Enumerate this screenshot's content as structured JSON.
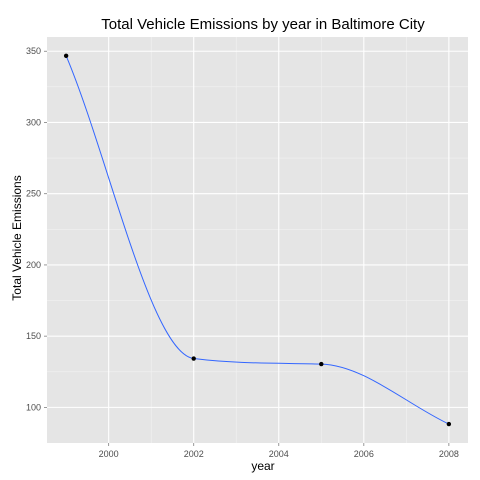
{
  "chart_data": {
    "type": "line",
    "title": "Total Vehicle Emissions by year in Baltimore City",
    "xlabel": "year",
    "ylabel": "Total Vehicle Emissions",
    "x": [
      1999,
      2002,
      2005,
      2008
    ],
    "series": [
      {
        "values": [
          346.8,
          134.3,
          130.4,
          88.3
        ]
      }
    ],
    "xlim": [
      1998.55,
      2008.45
    ],
    "ylim": [
      75,
      360
    ],
    "xticks": [
      2000,
      2002,
      2004,
      2006,
      2008
    ],
    "yticks": [
      100,
      150,
      200,
      250,
      300,
      350
    ],
    "xtick_labels": [
      "2000",
      "2002",
      "2004",
      "2006",
      "2008"
    ],
    "ytick_labels": [
      "100",
      "150",
      "200",
      "250",
      "300",
      "350"
    ],
    "smoothed": true,
    "grid": true,
    "legend": "none",
    "colors": {
      "panel": "#e5e5e5",
      "grid_major": "#ffffff",
      "grid_minor": "#f2f2f2",
      "line": "#3366ff",
      "point": "#000000"
    }
  }
}
